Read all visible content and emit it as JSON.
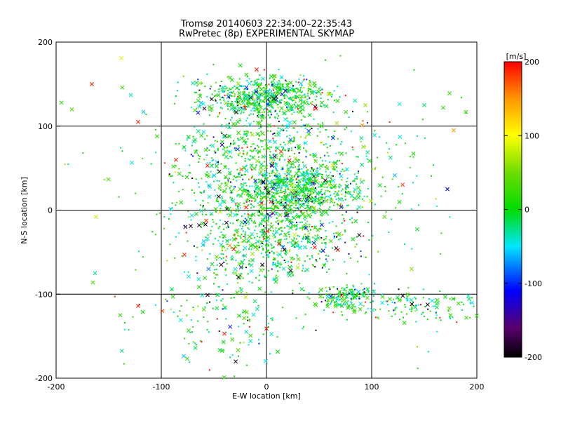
{
  "chart_data": {
    "type": "scatter",
    "title": [
      "Tromsø 20140603 22:34:00–22:35:43",
      "RwPretec (8p) EXPERIMENTAL SKYMAP"
    ],
    "xlabel": "E-W location [km]",
    "ylabel": "N-S location [km]",
    "xlim": [
      -200,
      200
    ],
    "ylim": [
      -200,
      200
    ],
    "xticks": [
      -200,
      -100,
      0,
      100,
      200
    ],
    "yticks": [
      -200,
      -100,
      0,
      100,
      200
    ],
    "xtick_labels": [
      "-200",
      "-100",
      "0",
      "100",
      "200"
    ],
    "ytick_labels": [
      "-200",
      "-100",
      "0",
      "100",
      "200"
    ],
    "grid": true,
    "colorbar": {
      "label": "[m/s]",
      "range": [
        -200,
        200
      ],
      "ticks": [
        200,
        100,
        0,
        -100,
        -200
      ],
      "tick_labels": [
        "200",
        "100",
        "0",
        "-100",
        "-200"
      ],
      "colormap": "rainbow (black at -200 through purple, blue, cyan, green, yellow to red at +200)",
      "stops": [
        {
          "value": -200,
          "color": "#000000"
        },
        {
          "value": -160,
          "color": "#5a006e"
        },
        {
          "value": -110,
          "color": "#0000ff"
        },
        {
          "value": -50,
          "color": "#00e6ff"
        },
        {
          "value": 0,
          "color": "#00dc00"
        },
        {
          "value": 50,
          "color": "#6edc00"
        },
        {
          "value": 100,
          "color": "#ffff00"
        },
        {
          "value": 150,
          "color": "#ff9600"
        },
        {
          "value": 200,
          "color": "#ff0000"
        }
      ]
    },
    "markers": {
      "small": "dot",
      "large": "x"
    },
    "points": [
      {
        "x": -166,
        "y": 150,
        "v": 190,
        "m": "x"
      },
      {
        "x": -138,
        "y": 181,
        "v": 90,
        "m": "x"
      },
      {
        "x": -137,
        "y": 146,
        "v": 30,
        "m": "x"
      },
      {
        "x": -129,
        "y": 137,
        "v": -40,
        "m": "x"
      },
      {
        "x": -122,
        "y": 105,
        "v": 190,
        "m": "x"
      },
      {
        "x": -117,
        "y": 117,
        "v": -60,
        "m": "x"
      },
      {
        "x": -185,
        "y": 120,
        "v": 30,
        "m": "x"
      },
      {
        "x": -195,
        "y": 128,
        "v": 20,
        "m": "x"
      },
      {
        "x": -104,
        "y": 88,
        "v": 20,
        "m": "x"
      },
      {
        "x": -56,
        "y": 53,
        "v": 190,
        "m": "x"
      },
      {
        "x": -59,
        "y": 121,
        "v": -190,
        "m": "x"
      },
      {
        "x": -65,
        "y": 116,
        "v": -110,
        "m": "x"
      },
      {
        "x": -70,
        "y": 151,
        "v": -30,
        "m": "x"
      },
      {
        "x": -3,
        "y": 34,
        "v": -190,
        "m": "x"
      },
      {
        "x": -1,
        "y": 26,
        "v": -170,
        "m": "x"
      },
      {
        "x": 2,
        "y": 21,
        "v": -190,
        "m": "x"
      },
      {
        "x": 40,
        "y": 16,
        "v": -190,
        "m": "x"
      },
      {
        "x": 47,
        "y": 121,
        "v": 200,
        "m": "x"
      },
      {
        "x": 18,
        "y": 142,
        "v": -120,
        "m": "x"
      },
      {
        "x": 91,
        "y": 101,
        "v": 150,
        "m": "x"
      },
      {
        "x": 178,
        "y": 95,
        "v": 150,
        "m": "x"
      },
      {
        "x": 172,
        "y": 25,
        "v": -110,
        "m": "x"
      },
      {
        "x": 174,
        "y": 139,
        "v": 20,
        "m": "x"
      },
      {
        "x": 168,
        "y": 122,
        "v": 20,
        "m": "x"
      },
      {
        "x": 150,
        "y": 125,
        "v": -20,
        "m": "x"
      },
      {
        "x": -162,
        "y": -8,
        "v": 80,
        "m": "x"
      },
      {
        "x": -77,
        "y": -20,
        "v": -190,
        "m": "x"
      },
      {
        "x": -72,
        "y": -19,
        "v": -190,
        "m": "x"
      },
      {
        "x": -64,
        "y": -18,
        "v": -190,
        "m": "x"
      },
      {
        "x": -58,
        "y": -17,
        "v": -190,
        "m": "x"
      },
      {
        "x": -38,
        "y": -15,
        "v": -190,
        "m": "x"
      },
      {
        "x": -35,
        "y": -42,
        "v": 150,
        "m": "x"
      },
      {
        "x": -56,
        "y": -34,
        "v": -30,
        "m": "x"
      },
      {
        "x": -78,
        "y": -53,
        "v": 190,
        "m": "x"
      },
      {
        "x": -43,
        "y": -65,
        "v": -190,
        "m": "x"
      },
      {
        "x": -55,
        "y": -70,
        "v": -80,
        "m": "x"
      },
      {
        "x": -23,
        "y": -62,
        "v": -20,
        "m": "x"
      },
      {
        "x": -4,
        "y": -65,
        "v": -190,
        "m": "x"
      },
      {
        "x": 1,
        "y": -25,
        "v": 190,
        "m": "x"
      },
      {
        "x": 12,
        "y": -40,
        "v": 190,
        "m": "x"
      },
      {
        "x": 17,
        "y": -47,
        "v": -190,
        "m": "x"
      },
      {
        "x": 23,
        "y": -72,
        "v": -190,
        "m": "x"
      },
      {
        "x": -165,
        "y": -86,
        "v": 30,
        "m": "x"
      },
      {
        "x": -163,
        "y": -75,
        "v": -30,
        "m": "x"
      },
      {
        "x": -139,
        "y": -125,
        "v": 20,
        "m": "x"
      },
      {
        "x": -122,
        "y": -114,
        "v": 190,
        "m": "x"
      },
      {
        "x": -99,
        "y": -120,
        "v": 180,
        "m": "x"
      },
      {
        "x": -90,
        "y": -94,
        "v": -20,
        "m": "x"
      },
      {
        "x": -56,
        "y": -101,
        "v": -190,
        "m": "x"
      },
      {
        "x": -40,
        "y": -147,
        "v": 190,
        "m": "x"
      },
      {
        "x": 0,
        "y": -141,
        "v": 190,
        "m": "x"
      },
      {
        "x": 102,
        "y": -97,
        "v": -30,
        "m": "x"
      },
      {
        "x": 138,
        "y": -70,
        "v": 60,
        "m": "x"
      },
      {
        "x": 175,
        "y": -125,
        "v": 20,
        "m": "x"
      },
      {
        "x": 190,
        "y": -128,
        "v": 20,
        "m": "x"
      },
      {
        "x": 94,
        "y": 125,
        "v": 60,
        "m": "x"
      },
      {
        "x": -86,
        "y": 60,
        "v": 190,
        "m": "x"
      }
    ],
    "clusters": [
      {
        "cx": 0,
        "cy": 135,
        "sx": 42,
        "sy": 16,
        "n": 600
      },
      {
        "cx": 25,
        "cy": 25,
        "sx": 35,
        "sy": 20,
        "n": 650
      },
      {
        "cx": 0,
        "cy": 70,
        "sx": 45,
        "sy": 40,
        "n": 450
      },
      {
        "cx": 10,
        "cy": -30,
        "sx": 45,
        "sy": 35,
        "n": 600
      },
      {
        "cx": 75,
        "cy": -105,
        "sx": 20,
        "sy": 10,
        "n": 160
      },
      {
        "cx": 140,
        "cy": -115,
        "sx": 40,
        "sy": 12,
        "n": 120
      },
      {
        "cx": -40,
        "cy": -120,
        "sx": 55,
        "sy": 45,
        "n": 170
      },
      {
        "cx": 60,
        "cy": 40,
        "sx": 55,
        "sy": 50,
        "n": 250
      },
      {
        "cx": -55,
        "cy": 20,
        "sx": 35,
        "sy": 55,
        "n": 180
      },
      {
        "cx": 0,
        "cy": 0,
        "sx": 160,
        "sy": 160,
        "n": 120
      }
    ]
  }
}
